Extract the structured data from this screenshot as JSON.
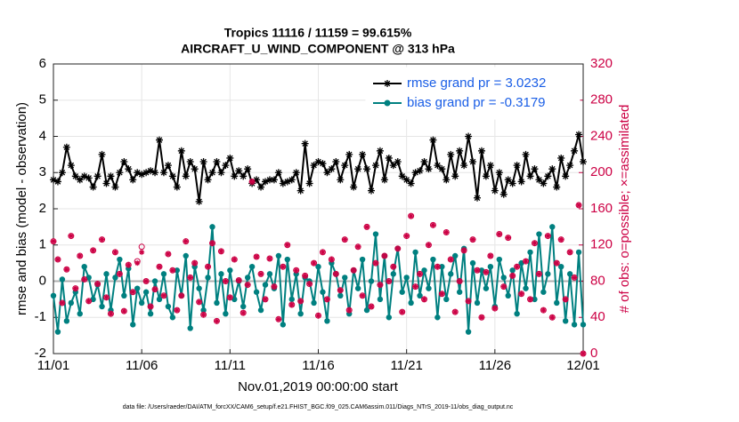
{
  "chart_data": {
    "type": "line",
    "title": "Tropics 11116 / 11159 = 99.615%",
    "subtitle": "AIRCRAFT_U_WIND_COMPONENT @ 313 hPa",
    "xlabel": "Nov.01,2019 00:00:00 start",
    "ylabel": "rmse and bias (model - observation)",
    "y2label": "# of obs: o=possible; ×=assimilated",
    "footnote": "data file: /Users/raeder/DAI/ATM_forcXX/CAM6_setup/f.e21.FHIST_BGC.f09_025.CAM6assim.011/Diags_NTrS_2019-11/obs_diag_output.nc",
    "xlim": [
      0,
      30
    ],
    "xticks": [
      {
        "value": 0,
        "label": "11/01"
      },
      {
        "value": 5,
        "label": "11/06"
      },
      {
        "value": 10,
        "label": "11/11"
      },
      {
        "value": 15,
        "label": "11/16"
      },
      {
        "value": 20,
        "label": "11/21"
      },
      {
        "value": 25,
        "label": "11/26"
      },
      {
        "value": 30,
        "label": "12/01"
      }
    ],
    "ylim": [
      -2,
      6
    ],
    "yticks": [
      -2,
      -1,
      0,
      1,
      2,
      3,
      4,
      5,
      6
    ],
    "y2lim": [
      0,
      320
    ],
    "y2ticks": [
      0,
      40,
      80,
      120,
      160,
      200,
      240,
      280,
      320
    ],
    "grid": true,
    "legend": "upper right",
    "x": [
      0,
      0.25,
      0.5,
      0.75,
      1,
      1.25,
      1.5,
      1.75,
      2,
      2.25,
      2.5,
      2.75,
      3,
      3.25,
      3.5,
      3.75,
      4,
      4.25,
      4.5,
      4.75,
      5,
      5.25,
      5.5,
      5.75,
      6,
      6.25,
      6.5,
      6.75,
      7,
      7.25,
      7.5,
      7.75,
      8,
      8.25,
      8.5,
      8.75,
      9,
      9.25,
      9.5,
      9.75,
      10,
      10.25,
      10.5,
      10.75,
      11,
      11.25,
      11.5,
      11.75,
      12,
      12.25,
      12.5,
      12.75,
      13,
      13.25,
      13.5,
      13.75,
      14,
      14.25,
      14.5,
      14.75,
      15,
      15.25,
      15.5,
      15.75,
      16,
      16.25,
      16.5,
      16.75,
      17,
      17.25,
      17.5,
      17.75,
      18,
      18.25,
      18.5,
      18.75,
      19,
      19.25,
      19.5,
      19.75,
      20,
      20.25,
      20.5,
      20.75,
      21,
      21.25,
      21.5,
      21.75,
      22,
      22.25,
      22.5,
      22.75,
      23,
      23.25,
      23.5,
      23.75,
      24,
      24.25,
      24.5,
      24.75,
      25,
      25.25,
      25.5,
      25.75,
      26,
      26.25,
      26.5,
      26.75,
      27,
      27.25,
      27.5,
      27.75,
      28,
      28.25,
      28.5,
      28.75,
      29,
      29.25,
      29.5,
      29.75,
      30
    ],
    "series": [
      {
        "name": "rmse grand pr = 3.0232",
        "color": "#000000",
        "marker": "star",
        "values": [
          2.8,
          2.75,
          3.0,
          3.7,
          3.2,
          2.9,
          2.8,
          2.9,
          2.85,
          2.6,
          2.9,
          3.5,
          2.7,
          2.9,
          2.6,
          3.0,
          3.3,
          3.1,
          2.8,
          3.0,
          2.95,
          3.0,
          3.05,
          3.0,
          3.9,
          3.0,
          3.2,
          2.9,
          2.6,
          3.6,
          2.9,
          3.3,
          3.1,
          2.2,
          3.3,
          2.8,
          3.0,
          3.3,
          3.0,
          3.2,
          3.4,
          2.9,
          3.05,
          2.9,
          3.1,
          2.7,
          2.8,
          2.6,
          2.75,
          2.8,
          2.8,
          3.0,
          2.7,
          2.75,
          2.8,
          3.0,
          2.5,
          3.8,
          2.7,
          3.2,
          3.3,
          3.25,
          3.0,
          3.1,
          3.3,
          2.8,
          3.2,
          3.5,
          2.6,
          3.1,
          3.5,
          3.1,
          2.5,
          3.2,
          3.6,
          2.8,
          3.4,
          3.2,
          3.3,
          2.9,
          2.8,
          2.7,
          3.0,
          3.05,
          3.3,
          3.1,
          3.9,
          3.2,
          3.1,
          2.8,
          3.5,
          2.9,
          3.6,
          3.2,
          4.0,
          3.3,
          2.3,
          3.6,
          2.9,
          3.2,
          2.5,
          3.0,
          2.4,
          2.8,
          2.7,
          3.2,
          2.75,
          3.5,
          2.9,
          3.1,
          2.8,
          2.7,
          2.9,
          3.1,
          2.6,
          3.4,
          2.9,
          3.2,
          3.6,
          4.05,
          3.3
        ]
      },
      {
        "name": "bias grand pr = -0.3179",
        "color": "#008080",
        "marker": "dot",
        "values": [
          -0.4,
          -1.4,
          0.05,
          -1.1,
          -0.6,
          -0.3,
          -0.9,
          0.4,
          0.1,
          -0.5,
          -0.1,
          -0.7,
          0.2,
          -0.8,
          0.1,
          0.6,
          -0.4,
          0.35,
          -1.2,
          -0.2,
          -0.6,
          -0.3,
          -0.9,
          0.0,
          -0.5,
          0.2,
          -0.7,
          -1.0,
          0.3,
          -0.4,
          0.7,
          -1.3,
          0.4,
          -0.2,
          -0.8,
          0.1,
          1.5,
          -0.6,
          0.2,
          -0.9,
          0.3,
          -0.5,
          0.0,
          -0.7,
          0.1,
          0.4,
          -0.3,
          -0.8,
          -0.1,
          0.2,
          -0.2,
          0.7,
          -1.2,
          0.6,
          -0.5,
          0.2,
          -0.9,
          0.1,
          0.0,
          -0.6,
          0.4,
          -0.3,
          -1.1,
          0.5,
          0.2,
          -0.4,
          0.1,
          -0.9,
          0.3,
          -0.2,
          0.6,
          -0.8,
          0.0,
          1.3,
          -0.5,
          0.7,
          -1.0,
          0.2,
          0.9,
          -0.3,
          0.1,
          -0.6,
          0.8,
          -0.4,
          0.3,
          -0.2,
          0.6,
          -1.0,
          0.4,
          -0.5,
          0.2,
          0.7,
          -0.3,
          0.9,
          -1.4,
          0.5,
          -0.6,
          0.3,
          -0.2,
          0.4,
          -0.7,
          0.6,
          0.1,
          -0.4,
          0.3,
          -0.9,
          0.5,
          -0.2,
          0.8,
          -0.5,
          1.3,
          -0.3,
          0.2,
          1.5,
          -0.6,
          0.4,
          -1.1,
          0.2,
          -1.2,
          0.8,
          -1.2
        ]
      },
      {
        "name": "possible",
        "color": "#cc0044",
        "marker": "circle",
        "axis": "y2",
        "values": [
          124,
          104,
          56,
          93,
          130,
          72,
          108,
          82,
          58,
          114,
          77,
          126,
          62,
          44,
          112,
          88,
          47,
          98,
          68,
          102,
          118,
          80,
          52,
          71,
          96,
          64,
          110,
          92,
          48,
          64,
          124,
          84,
          100,
          57,
          43,
          96,
          122,
          36,
          113,
          80,
          62,
          104,
          81,
          45,
          76,
          190,
          107,
          88,
          60,
          105,
          74,
          38,
          96,
          120,
          54,
          92,
          58,
          86,
          77,
          100,
          42,
          112,
          60,
          104,
          88,
          70,
          126,
          48,
          92,
          118,
          64,
          140,
          52,
          100,
          76,
          108,
          80,
          96,
          116,
          46,
          130,
          152,
          74,
          88,
          60,
          120,
          142,
          96,
          66,
          134,
          104,
          46,
          80,
          114,
          58,
          126,
          92,
          40,
          90,
          108,
          50,
          132,
          74,
          128,
          86,
          96,
          66,
          102,
          60,
          122,
          88,
          48,
          130,
          40,
          100,
          126,
          60,
          112,
          84,
          164,
          0
        ]
      },
      {
        "name": "assimilated",
        "color": "#cc0044",
        "marker": "asterisk",
        "axis": "y2",
        "values": [
          124,
          104,
          56,
          93,
          130,
          72,
          108,
          82,
          58,
          114,
          77,
          126,
          62,
          44,
          112,
          88,
          47,
          98,
          68,
          100,
          112,
          80,
          52,
          71,
          96,
          64,
          110,
          92,
          48,
          64,
          124,
          84,
          100,
          57,
          43,
          96,
          122,
          36,
          113,
          80,
          62,
          104,
          81,
          45,
          76,
          190,
          107,
          88,
          60,
          105,
          74,
          38,
          96,
          120,
          54,
          92,
          58,
          86,
          77,
          100,
          42,
          112,
          60,
          104,
          88,
          70,
          126,
          48,
          92,
          118,
          64,
          140,
          52,
          100,
          76,
          108,
          80,
          96,
          116,
          46,
          130,
          152,
          74,
          88,
          60,
          120,
          142,
          96,
          66,
          134,
          104,
          46,
          80,
          114,
          58,
          126,
          92,
          40,
          90,
          108,
          50,
          132,
          74,
          128,
          86,
          96,
          66,
          102,
          60,
          122,
          88,
          48,
          130,
          40,
          100,
          126,
          60,
          112,
          84,
          164,
          0
        ]
      }
    ]
  }
}
